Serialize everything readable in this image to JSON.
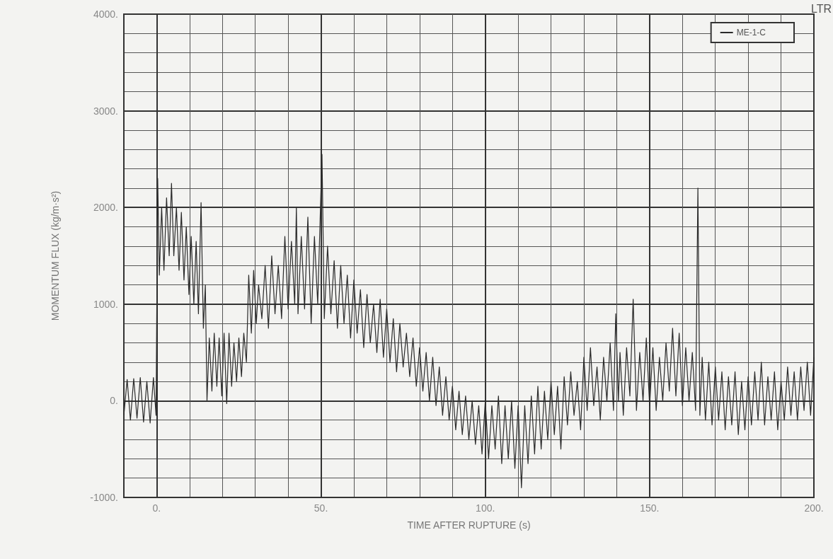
{
  "chart_data": {
    "type": "line",
    "xlabel": "TIME AFTER RUPTURE (s)",
    "ylabel": "MOMENTUM FLUX (kg/m·s²)",
    "annotations": [
      "LTR"
    ],
    "legend": "top right",
    "grid": true,
    "marker": "none",
    "line_style": "solid",
    "xlim": [
      -10,
      200
    ],
    "ylim": [
      -1000,
      4000
    ],
    "xticks": [
      {
        "value": 0,
        "label": "0."
      },
      {
        "value": 50,
        "label": "50."
      },
      {
        "value": 100,
        "label": "100."
      },
      {
        "value": 150,
        "label": "150."
      },
      {
        "value": 200,
        "label": "200."
      }
    ],
    "yticks": [
      {
        "value": -1000,
        "label": "-1000."
      },
      {
        "value": 0,
        "label": "0."
      },
      {
        "value": 1000,
        "label": "1000."
      },
      {
        "value": 2000,
        "label": "2000."
      },
      {
        "value": 3000,
        "label": "3000."
      },
      {
        "value": 4000,
        "label": "4000."
      }
    ],
    "series": [
      {
        "name": "ME-1-C",
        "color": "#2a2a2a",
        "x": [
          -10,
          -9,
          -8,
          -7,
          -6,
          -5,
          -4,
          -3,
          -2,
          -1,
          -0.2,
          0.3,
          0.8,
          1.5,
          2.2,
          3,
          3.8,
          4.5,
          5.2,
          6,
          6.8,
          7.5,
          8.3,
          9,
          9.8,
          10.5,
          11.3,
          12,
          12.7,
          13.5,
          14.2,
          14.8,
          15.3,
          16,
          16.8,
          17.5,
          18.3,
          19,
          19.8,
          20.5,
          21.3,
          22,
          22.8,
          23.5,
          24.3,
          25,
          25.8,
          26.5,
          27.3,
          28,
          28.8,
          29.5,
          30.3,
          31,
          32,
          33,
          34,
          35,
          36,
          37,
          38,
          39,
          40,
          41,
          42,
          42.5,
          43,
          44,
          45,
          46,
          47,
          48,
          49,
          50.3,
          51,
          52,
          53,
          54,
          55,
          56,
          57,
          58,
          59,
          60,
          61,
          62,
          63,
          64,
          65,
          66,
          67,
          68,
          69,
          70,
          71,
          72,
          73,
          74,
          75,
          76,
          77,
          78,
          79,
          80,
          81,
          82,
          83,
          84,
          85,
          86,
          87,
          88,
          89,
          90,
          91,
          92,
          93,
          94,
          95,
          96,
          97,
          98,
          99,
          100,
          101,
          102,
          103,
          104,
          105,
          106,
          107,
          108,
          109,
          110,
          111,
          112,
          113,
          114,
          115,
          116,
          117,
          118,
          119,
          120,
          121,
          122,
          123,
          124,
          125,
          126,
          127,
          128,
          129,
          130,
          131,
          132,
          133,
          134,
          135,
          136,
          137,
          138,
          139,
          139.7,
          140.5,
          141,
          142,
          143,
          144,
          145,
          146,
          147,
          148,
          149,
          150,
          151,
          152,
          153,
          154,
          155,
          156,
          157,
          158,
          159,
          160,
          161,
          162,
          163,
          164,
          164.7,
          165.3,
          166,
          167,
          168,
          169,
          170,
          171,
          172,
          173,
          174,
          175,
          176,
          177,
          178,
          179,
          180,
          181,
          182,
          183,
          184,
          185,
          186,
          187,
          188,
          189,
          190,
          191,
          192,
          193,
          194,
          195,
          196,
          197,
          198,
          199,
          200
        ],
        "values": [
          -150,
          220,
          -200,
          230,
          -180,
          240,
          -220,
          200,
          -230,
          240,
          -150,
          2300,
          1300,
          2000,
          1350,
          2100,
          1500,
          2250,
          1500,
          2000,
          1350,
          1950,
          1250,
          1800,
          1100,
          1700,
          1000,
          1650,
          900,
          2050,
          750,
          1200,
          0,
          650,
          100,
          700,
          150,
          650,
          50,
          700,
          -30,
          700,
          150,
          600,
          200,
          650,
          250,
          700,
          400,
          1300,
          700,
          1350,
          800,
          1200,
          850,
          1400,
          750,
          1500,
          900,
          1400,
          850,
          1700,
          950,
          1650,
          1000,
          2000,
          900,
          1700,
          950,
          1900,
          800,
          1700,
          1000,
          2550,
          850,
          1600,
          900,
          1450,
          750,
          1400,
          800,
          1300,
          650,
          1250,
          700,
          1150,
          550,
          1100,
          600,
          1000,
          500,
          1050,
          450,
          950,
          400,
          850,
          300,
          800,
          350,
          700,
          250,
          650,
          150,
          550,
          100,
          500,
          0,
          450,
          -50,
          350,
          -150,
          250,
          -200,
          150,
          -300,
          100,
          -350,
          50,
          -400,
          0,
          -450,
          -50,
          -550,
          0,
          -600,
          -50,
          -500,
          50,
          -650,
          -50,
          -600,
          0,
          -700,
          -50,
          -900,
          -50,
          -650,
          50,
          -550,
          150,
          -500,
          100,
          -400,
          200,
          -350,
          150,
          -500,
          250,
          -250,
          300,
          -150,
          200,
          -300,
          450,
          -100,
          550,
          -50,
          350,
          -200,
          450,
          0,
          600,
          -100,
          900,
          0,
          500,
          -150,
          550,
          50,
          1050,
          -100,
          500,
          0,
          650,
          -50,
          550,
          -100,
          450,
          0,
          600,
          100,
          750,
          50,
          700,
          -50,
          550,
          0,
          500,
          -100,
          2200,
          -150,
          450,
          -200,
          400,
          -250,
          350,
          -200,
          300,
          -300,
          250,
          -250,
          300,
          -350,
          200,
          -300,
          250,
          -250,
          300,
          -200,
          400,
          -250,
          250,
          -200,
          300,
          -300,
          200,
          -200,
          350,
          -150,
          300,
          -200,
          350,
          -100,
          400,
          -150,
          450
        ]
      }
    ]
  }
}
